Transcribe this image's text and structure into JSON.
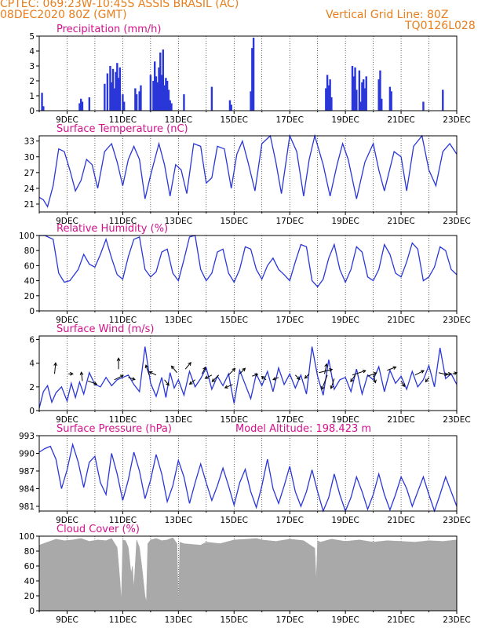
{
  "header": {
    "line1": "CPTEC:   069:23W-10:45S   ASSIS BRASIL (AC)",
    "line2": "08DEC2020 80Z (GMT)",
    "grid": "Vertical Grid Line: 80Z",
    "code": "TQ0126L028"
  },
  "colors": {
    "header": "#e87f1c",
    "title": "#d4108c",
    "line": "#2a37d8",
    "bar": "#2a37d8",
    "cloud": "#a9a9a9"
  },
  "x_ticks": [
    "9DEC",
    "11DEC",
    "13DEC",
    "15DEC",
    "17DEC",
    "19DEC",
    "21DEC",
    "23DEC"
  ],
  "chart_data": [
    {
      "id": "precip",
      "type": "bar",
      "title": "Precipitation (mm/h)",
      "ylim": [
        0,
        5
      ],
      "yticks": [
        0,
        1,
        2,
        3,
        4,
        5
      ],
      "x": [
        8.1,
        8.15,
        9.45,
        9.5,
        9.55,
        9.8,
        10.35,
        10.45,
        10.55,
        10.6,
        10.65,
        10.7,
        10.75,
        10.8,
        10.85,
        10.9,
        11.0,
        11.05,
        11.45,
        11.5,
        11.6,
        11.65,
        12.0,
        12.1,
        12.15,
        12.2,
        12.25,
        12.3,
        12.35,
        12.4,
        12.45,
        12.5,
        12.55,
        12.6,
        12.65,
        12.7,
        12.75,
        13.2,
        14.2,
        14.85,
        14.9,
        15.6,
        15.65,
        15.7,
        18.3,
        18.35,
        18.4,
        18.45,
        18.5,
        19.25,
        19.3,
        19.35,
        19.4,
        19.5,
        19.55,
        19.6,
        19.65,
        19.7,
        19.75,
        20.2,
        20.25,
        20.3,
        20.6,
        20.65,
        21.8,
        22.5
      ],
      "values": [
        1.2,
        0.3,
        0.5,
        0.8,
        0.6,
        0.9,
        1.8,
        2.5,
        3.0,
        1.9,
        2.8,
        1.5,
        2.6,
        3.2,
        2.2,
        2.9,
        1.1,
        0.6,
        1.5,
        1.1,
        1.3,
        1.7,
        2.4,
        2.0,
        3.3,
        2.3,
        1.9,
        2.9,
        3.9,
        2.4,
        4.1,
        1.7,
        2.2,
        2.0,
        1.4,
        0.7,
        0.5,
        1.1,
        1.6,
        0.7,
        0.4,
        1.3,
        4.2,
        4.9,
        1.5,
        2.4,
        1.7,
        2.1,
        0.9,
        3.0,
        2.3,
        2.9,
        1.4,
        2.7,
        0.6,
        1.9,
        2.1,
        1.5,
        2.3,
        2.1,
        2.7,
        0.8,
        1.6,
        1.3,
        0.6,
        1.4
      ]
    },
    {
      "id": "temp",
      "type": "line",
      "title": "Surface Temperature (nC)",
      "ylim": [
        19.5,
        34
      ],
      "yticks": [
        21,
        24,
        27,
        30,
        33
      ],
      "x": [
        8.0,
        8.15,
        8.3,
        8.5,
        8.7,
        8.9,
        9.1,
        9.3,
        9.5,
        9.7,
        9.9,
        10.1,
        10.35,
        10.6,
        10.8,
        11.0,
        11.2,
        11.4,
        11.6,
        11.8,
        12.0,
        12.3,
        12.5,
        12.7,
        12.9,
        13.1,
        13.3,
        13.55,
        13.8,
        14.0,
        14.2,
        14.4,
        14.65,
        14.9,
        15.1,
        15.3,
        15.5,
        15.75,
        16.0,
        16.3,
        16.5,
        16.7,
        17.0,
        17.25,
        17.5,
        17.7,
        17.9,
        18.2,
        18.45,
        18.7,
        18.9,
        19.1,
        19.4,
        19.7,
        20.0,
        20.2,
        20.4,
        20.75,
        21.0,
        21.2,
        21.45,
        21.75,
        22.0,
        22.25,
        22.5,
        22.75,
        23.0
      ],
      "values": [
        22.3,
        21.8,
        20.5,
        24.5,
        31.5,
        31.0,
        27.5,
        23.5,
        25.5,
        29.5,
        28.5,
        24.0,
        31.0,
        32.5,
        29.0,
        24.5,
        29.5,
        32.0,
        29.5,
        22.0,
        26.5,
        32.5,
        28.5,
        22.5,
        28.5,
        27.5,
        23.0,
        32.5,
        32.0,
        25.0,
        26.0,
        32.0,
        31.5,
        24.0,
        30.5,
        33.0,
        29.0,
        23.5,
        32.5,
        34.0,
        29.0,
        23.0,
        34.5,
        31.0,
        22.5,
        29.5,
        34.5,
        28.5,
        22.5,
        28.5,
        32.5,
        29.5,
        22.0,
        29.0,
        32.5,
        27.5,
        23.5,
        31.0,
        30.0,
        23.5,
        32.0,
        34.5,
        27.5,
        24.5,
        31.0,
        32.5,
        30.5
      ]
    },
    {
      "id": "rh",
      "type": "line",
      "title": "Relative Humidity (%)",
      "ylim": [
        0,
        100
      ],
      "yticks": [
        0,
        20,
        40,
        60,
        80,
        100
      ],
      "x": [
        8.0,
        8.2,
        8.5,
        8.7,
        8.9,
        9.1,
        9.4,
        9.6,
        9.8,
        10.0,
        10.2,
        10.4,
        10.6,
        10.8,
        11.0,
        11.2,
        11.4,
        11.6,
        11.8,
        12.0,
        12.2,
        12.4,
        12.6,
        12.8,
        13.0,
        13.2,
        13.4,
        13.6,
        13.8,
        14.0,
        14.2,
        14.4,
        14.6,
        14.8,
        15.0,
        15.2,
        15.4,
        15.6,
        15.8,
        16.0,
        16.2,
        16.4,
        16.6,
        16.8,
        17.0,
        17.2,
        17.4,
        17.6,
        17.8,
        18.0,
        18.2,
        18.4,
        18.6,
        18.8,
        19.0,
        19.2,
        19.4,
        19.6,
        19.8,
        20.0,
        20.2,
        20.4,
        20.6,
        20.8,
        21.0,
        21.2,
        21.4,
        21.6,
        21.8,
        22.0,
        22.2,
        22.4,
        22.6,
        22.8,
        23.0
      ],
      "values": [
        100,
        100,
        95,
        50,
        38,
        40,
        55,
        75,
        62,
        58,
        75,
        95,
        70,
        48,
        42,
        72,
        95,
        98,
        55,
        45,
        52,
        78,
        82,
        50,
        40,
        68,
        98,
        100,
        55,
        40,
        50,
        78,
        82,
        50,
        38,
        55,
        85,
        82,
        55,
        42,
        60,
        70,
        55,
        48,
        40,
        65,
        88,
        85,
        40,
        32,
        42,
        70,
        88,
        55,
        38,
        55,
        85,
        78,
        45,
        40,
        55,
        88,
        75,
        50,
        45,
        65,
        90,
        82,
        40,
        45,
        58,
        85,
        80,
        55,
        48
      ]
    },
    {
      "id": "wind",
      "type": "line",
      "title": "Surface Wind (m/s)",
      "ylim": [
        0,
        6.3
      ],
      "yticks": [
        0,
        2,
        4,
        6
      ],
      "x": [
        8.0,
        8.15,
        8.3,
        8.45,
        8.6,
        8.8,
        9.0,
        9.15,
        9.3,
        9.45,
        9.6,
        9.8,
        10.0,
        10.2,
        10.4,
        10.6,
        10.8,
        11.0,
        11.2,
        11.4,
        11.6,
        11.8,
        12.0,
        12.2,
        12.4,
        12.55,
        12.7,
        12.85,
        13.0,
        13.2,
        13.4,
        13.6,
        13.8,
        14.0,
        14.2,
        14.4,
        14.6,
        14.8,
        15.0,
        15.2,
        15.4,
        15.6,
        15.8,
        16.0,
        16.2,
        16.4,
        16.6,
        16.8,
        17.0,
        17.2,
        17.4,
        17.6,
        17.8,
        18.0,
        18.2,
        18.4,
        18.6,
        18.8,
        19.0,
        19.2,
        19.4,
        19.6,
        19.8,
        20.0,
        20.2,
        20.4,
        20.6,
        20.8,
        21.0,
        21.2,
        21.4,
        21.6,
        21.8,
        22.0,
        22.2,
        22.4,
        22.6,
        22.8,
        23.0
      ],
      "values": [
        0.2,
        1.6,
        2.1,
        0.7,
        1.5,
        2.0,
        0.8,
        2.3,
        1.1,
        2.4,
        1.4,
        3.2,
        2.2,
        2.0,
        2.8,
        2.1,
        2.6,
        2.8,
        3.0,
        2.2,
        1.6,
        5.4,
        2.3,
        1.2,
        2.8,
        1.1,
        3.2,
        1.9,
        2.6,
        1.3,
        3.3,
        2.0,
        2.7,
        3.6,
        1.8,
        2.9,
        2.1,
        3.1,
        0.6,
        3.4,
        2.2,
        1.0,
        3.1,
        2.1,
        3.3,
        1.6,
        3.6,
        2.2,
        3.1,
        1.9,
        3.0,
        1.4,
        5.4,
        2.9,
        1.3,
        4.3,
        1.8,
        2.6,
        2.8,
        1.6,
        3.5,
        1.4,
        3.0,
        2.6,
        3.7,
        1.6,
        3.4,
        2.3,
        2.9,
        1.8,
        3.3,
        2.0,
        2.6,
        3.8,
        2.0,
        5.3,
        2.7,
        3.1,
        2.2
      ],
      "arrows": [
        {
          "x": 8.55,
          "y": 3.1,
          "u": 0.1,
          "v": 1.0
        },
        {
          "x": 9.05,
          "y": 3.1,
          "u": 0.4,
          "v": 0.0
        },
        {
          "x": 9.55,
          "y": 2.5,
          "u": -0.1,
          "v": 0.8
        },
        {
          "x": 9.75,
          "y": 2.5,
          "u": 0.8,
          "v": -0.3
        },
        {
          "x": 10.7,
          "y": 2.6,
          "u": 0.8,
          "v": 0.4
        },
        {
          "x": 10.85,
          "y": 3.5,
          "u": 0.0,
          "v": 1.0
        },
        {
          "x": 11.2,
          "y": 2.8,
          "u": 0.6,
          "v": -0.2
        },
        {
          "x": 11.95,
          "y": 3.0,
          "u": -0.3,
          "v": 0.9
        },
        {
          "x": 12.2,
          "y": 3.0,
          "u": -0.6,
          "v": 0.3
        },
        {
          "x": 12.5,
          "y": 2.6,
          "u": 0.4,
          "v": -0.5
        },
        {
          "x": 12.95,
          "y": 3.2,
          "u": -0.5,
          "v": 0.6
        },
        {
          "x": 13.25,
          "y": 3.5,
          "u": 0.5,
          "v": 0.6
        },
        {
          "x": 13.6,
          "y": 2.6,
          "u": -0.5,
          "v": -0.4
        },
        {
          "x": 13.85,
          "y": 3.1,
          "u": 0.3,
          "v": 0.6
        },
        {
          "x": 14.2,
          "y": 3.0,
          "u": -0.6,
          "v": -0.3
        },
        {
          "x": 14.45,
          "y": 3.0,
          "u": -0.6,
          "v": -0.6
        },
        {
          "x": 14.8,
          "y": 3.0,
          "u": 0.6,
          "v": 0.6
        },
        {
          "x": 14.95,
          "y": 2.2,
          "u": -0.7,
          "v": -0.3
        },
        {
          "x": 15.2,
          "y": 3.1,
          "u": 0.5,
          "v": 0.5
        },
        {
          "x": 15.65,
          "y": 2.9,
          "u": 0.5,
          "v": 0.2
        },
        {
          "x": 16.15,
          "y": 2.6,
          "u": -0.4,
          "v": 0.3
        },
        {
          "x": 16.6,
          "y": 2.8,
          "u": -0.5,
          "v": -0.2
        },
        {
          "x": 17.2,
          "y": 3.0,
          "u": 0.4,
          "v": -0.4
        },
        {
          "x": 17.7,
          "y": 3.1,
          "u": -0.4,
          "v": -0.4
        },
        {
          "x": 18.05,
          "y": 3.2,
          "u": 1.2,
          "v": 0.3
        },
        {
          "x": 18.25,
          "y": 3.1,
          "u": 0.2,
          "v": 0.9
        },
        {
          "x": 18.35,
          "y": 3.0,
          "u": -0.5,
          "v": -1.3
        },
        {
          "x": 18.6,
          "y": 2.7,
          "u": -0.3,
          "v": -0.9
        },
        {
          "x": 19.25,
          "y": 3.0,
          "u": 1.2,
          "v": 0.4
        },
        {
          "x": 19.35,
          "y": 3.0,
          "u": -0.4,
          "v": -0.6
        },
        {
          "x": 19.8,
          "y": 2.9,
          "u": 0.8,
          "v": 0.3
        },
        {
          "x": 20.0,
          "y": 3.1,
          "u": 0.2,
          "v": -0.8
        },
        {
          "x": 20.5,
          "y": 3.4,
          "u": 0.8,
          "v": 0.3
        },
        {
          "x": 21.0,
          "y": 2.5,
          "u": 0.3,
          "v": -0.5
        },
        {
          "x": 21.5,
          "y": 3.0,
          "u": 0.8,
          "v": 0.4
        },
        {
          "x": 22.0,
          "y": 2.8,
          "u": -0.3,
          "v": -0.4
        },
        {
          "x": 22.35,
          "y": 3.2,
          "u": 0.8,
          "v": -0.2
        },
        {
          "x": 22.6,
          "y": 3.1,
          "u": 0.5,
          "v": 0.0
        },
        {
          "x": 22.85,
          "y": 3.1,
          "u": 0.4,
          "v": 0.1
        }
      ]
    },
    {
      "id": "press",
      "type": "line",
      "title": "Surface Pressure (hPa)",
      "annotation": "Model Altitude: 198.423 m",
      "ylim": [
        980.2,
        993
      ],
      "yticks": [
        981,
        984,
        987,
        990,
        993
      ],
      "x": [
        8.0,
        8.2,
        8.4,
        8.6,
        8.8,
        9.0,
        9.2,
        9.4,
        9.6,
        9.8,
        10.0,
        10.2,
        10.4,
        10.6,
        10.8,
        11.0,
        11.2,
        11.4,
        11.6,
        11.8,
        12.0,
        12.2,
        12.4,
        12.6,
        12.8,
        13.0,
        13.2,
        13.4,
        13.6,
        13.8,
        14.0,
        14.2,
        14.4,
        14.6,
        14.8,
        15.0,
        15.2,
        15.4,
        15.6,
        15.8,
        16.0,
        16.2,
        16.4,
        16.6,
        16.8,
        17.0,
        17.2,
        17.4,
        17.6,
        17.8,
        18.0,
        18.2,
        18.4,
        18.6,
        18.8,
        19.0,
        19.2,
        19.4,
        19.6,
        19.8,
        20.0,
        20.2,
        20.4,
        20.6,
        20.8,
        21.0,
        21.2,
        21.4,
        21.6,
        21.8,
        22.0,
        22.2,
        22.4,
        22.6,
        22.8,
        23.0
      ],
      "values": [
        990.2,
        990.8,
        991.2,
        989.0,
        984.0,
        987.2,
        991.5,
        988.5,
        984.2,
        988.5,
        989.5,
        985.0,
        983.0,
        990.0,
        986.5,
        982.0,
        985.5,
        990.2,
        987.0,
        982.3,
        985.5,
        989.8,
        986.5,
        981.8,
        984.5,
        988.8,
        986.0,
        981.5,
        985.0,
        988.2,
        985.0,
        982.0,
        984.5,
        987.5,
        984.5,
        981.2,
        985.0,
        987.3,
        983.5,
        980.8,
        984.5,
        989.0,
        984.0,
        981.5,
        984.5,
        987.8,
        983.5,
        981.0,
        983.5,
        987.2,
        983.5,
        980.2,
        982.5,
        986.5,
        983.0,
        980.2,
        982.5,
        986.0,
        983.5,
        980.5,
        983.0,
        986.5,
        983.0,
        980.4,
        983.0,
        986.0,
        984.0,
        981.0,
        983.5,
        986.0,
        983.0,
        980.2,
        983.0,
        986.0,
        983.5,
        981.0
      ]
    },
    {
      "id": "cloud",
      "type": "area",
      "title": "Cloud Cover (%)",
      "ylim": [
        0,
        100
      ],
      "yticks": [
        0,
        20,
        40,
        60,
        80,
        100
      ],
      "x": [
        8.0,
        8.3,
        8.6,
        8.9,
        9.2,
        9.5,
        9.8,
        10.1,
        10.4,
        10.6,
        10.8,
        10.9,
        10.95,
        11.0,
        11.1,
        11.2,
        11.3,
        11.35,
        11.4,
        11.5,
        11.6,
        11.7,
        11.8,
        11.85,
        11.9,
        12.0,
        12.2,
        12.4,
        12.6,
        12.8,
        12.95,
        13.0,
        13.05,
        13.2,
        13.5,
        13.8,
        14.0,
        14.5,
        15.0,
        15.5,
        15.8,
        16.0,
        16.5,
        17.0,
        17.5,
        17.9,
        17.95,
        18.0,
        18.1,
        18.5,
        19.0,
        19.5,
        20.0,
        20.5,
        21.0,
        21.5,
        22.0,
        22.5,
        23.0
      ],
      "values": [
        88,
        92,
        96,
        94,
        95,
        97,
        93,
        95,
        94,
        97,
        85,
        40,
        12,
        95,
        94,
        85,
        50,
        60,
        30,
        95,
        85,
        55,
        20,
        12,
        90,
        95,
        97,
        94,
        95,
        98,
        90,
        5,
        92,
        90,
        89,
        88,
        92,
        90,
        95,
        96,
        97,
        95,
        93,
        96,
        94,
        84,
        40,
        94,
        92,
        96,
        93,
        95,
        92,
        94,
        93,
        92,
        94,
        93,
        95
      ]
    }
  ]
}
